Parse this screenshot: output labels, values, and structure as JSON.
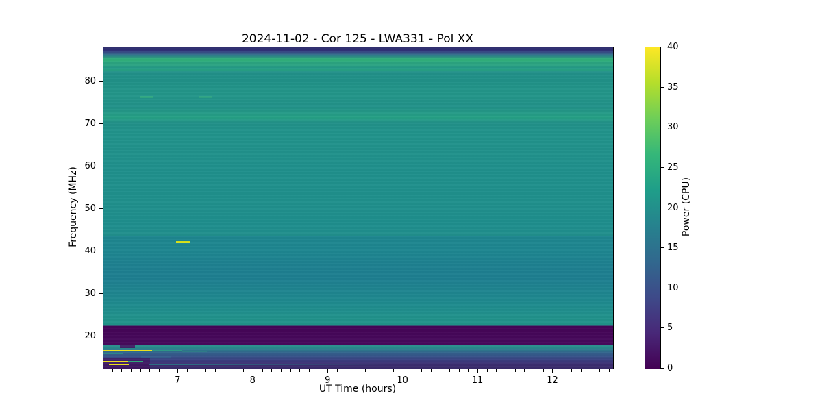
{
  "figure": {
    "title": "2024-11-02 - Cor 125 - LWA331 - Pol XX"
  },
  "chart_data": {
    "type": "heatmap",
    "subtype": "dynamic-spectrum",
    "title": "2024-11-02 - Cor 125 - LWA331 - Pol XX",
    "xlabel": "UT Time (hours)",
    "ylabel": "Frequency (MHz)",
    "x_range": [
      6.0,
      12.8
    ],
    "y_range": [
      12.5,
      88.0
    ],
    "x_ticks": [
      7,
      8,
      9,
      10,
      11,
      12
    ],
    "x_minor_tick_interval": 0.125,
    "y_ticks": [
      20,
      30,
      40,
      50,
      60,
      70,
      80
    ],
    "grid": false,
    "colorbar": {
      "label": "Power (CPU)",
      "range": [
        0,
        40
      ],
      "ticks": [
        0,
        5,
        10,
        15,
        20,
        25,
        30,
        35,
        40
      ],
      "colormap": "viridis",
      "stops": [
        "#440154",
        "#482878",
        "#3e4a89",
        "#31688e",
        "#26828e",
        "#1f9e89",
        "#35b779",
        "#6ece58",
        "#b5de2b",
        "#fde725"
      ]
    },
    "base_spectrum_gradient": [
      [
        88.0,
        "#2b2a6b"
      ],
      [
        87.3,
        "#303077"
      ],
      [
        86.6,
        "#395a8c"
      ],
      [
        86.0,
        "#2f808b"
      ],
      [
        85.4,
        "#2fa87d"
      ],
      [
        85.0,
        "#33b47a"
      ],
      [
        84.5,
        "#2ba580"
      ],
      [
        83.8,
        "#2ba381"
      ],
      [
        83.2,
        "#249a87"
      ],
      [
        82.7,
        "#28a384"
      ],
      [
        82.2,
        "#229089"
      ],
      [
        80.0,
        "#219188"
      ],
      [
        77.0,
        "#239689"
      ],
      [
        74.0,
        "#229189"
      ],
      [
        71.5,
        "#26a185"
      ],
      [
        70.2,
        "#229089"
      ],
      [
        68.0,
        "#21938b"
      ],
      [
        60.0,
        "#20908c"
      ],
      [
        52.0,
        "#20908c"
      ],
      [
        46.0,
        "#1f8e8d"
      ],
      [
        43.8,
        "#218f8c"
      ],
      [
        43.6,
        "#1e868f"
      ],
      [
        40.0,
        "#1e8690"
      ],
      [
        36.5,
        "#1e8090"
      ],
      [
        33.5,
        "#1e7f90"
      ],
      [
        30.5,
        "#1f858f"
      ],
      [
        27.5,
        "#1f8b8e"
      ],
      [
        25.0,
        "#21918c"
      ],
      [
        23.2,
        "#219389"
      ],
      [
        22.6,
        "#21948a"
      ],
      [
        22.55,
        "#450457"
      ],
      [
        18.1,
        "#470b5c"
      ],
      [
        18.05,
        "#27918b"
      ],
      [
        17.3,
        "#2a8a8d"
      ],
      [
        17.0,
        "#2d7e8e"
      ],
      [
        16.2,
        "#33638d"
      ],
      [
        15.3,
        "#375189"
      ],
      [
        14.4,
        "#3b3d80"
      ],
      [
        13.6,
        "#3c2f72"
      ],
      [
        12.5,
        "#3a2b6b"
      ]
    ],
    "features": [
      {
        "name": "dark-band-bottom-left",
        "t0": 6.0,
        "t1": 6.62,
        "f0": 12.5,
        "f1": 15.0,
        "color": "#440a57",
        "opacity": 0.55
      },
      {
        "name": "teal-dash-16mhz",
        "t0": 6.0,
        "t1": 6.26,
        "f0": 15.9,
        "f1": 16.25,
        "color": "#2e8e8d",
        "opacity": 0.9
      },
      {
        "name": "blue-dash-15mhz",
        "t0": 6.5,
        "t1": 6.9,
        "f0": 15.1,
        "f1": 15.45,
        "color": "#35608d",
        "opacity": 0.8
      },
      {
        "name": "gap-dark-17.6mhz",
        "t0": 6.22,
        "t1": 6.42,
        "f0": 17.3,
        "f1": 17.95,
        "color": "#451060",
        "opacity": 0.85
      },
      {
        "name": "teal-ext-16.6mhz",
        "t0": 6.65,
        "t1": 7.05,
        "f0": 16.45,
        "f1": 16.78,
        "color": "#2f9e87",
        "opacity": 0.9
      },
      {
        "name": "teal-faint-16.6mhz",
        "t0": 7.05,
        "t1": 7.38,
        "f0": 16.45,
        "f1": 16.72,
        "color": "#2f9e87",
        "opacity": 0.38
      },
      {
        "name": "teal-line-13.4mhz",
        "t0": 6.6,
        "t1": 9.8,
        "f0": 13.25,
        "f1": 13.55,
        "color": "#2b808d",
        "opacity": 0.8,
        "fade": "right"
      },
      {
        "name": "rfi-yellow-16.6mhz",
        "t0": 6.0,
        "t1": 6.65,
        "f0": 16.45,
        "f1": 16.8,
        "color": "#f2e51e",
        "opacity": 1
      },
      {
        "name": "rfi-yellow-14.2mhz",
        "t0": 6.0,
        "t1": 6.33,
        "f0": 14.0,
        "f1": 14.35,
        "color": "#f2e51e",
        "opacity": 1
      },
      {
        "name": "green-ext-14.2mhz",
        "t0": 6.33,
        "t1": 6.53,
        "f0": 14.0,
        "f1": 14.35,
        "color": "#2fae7c",
        "opacity": 1
      },
      {
        "name": "rfi-yellow-13.5mhz",
        "t0": 6.07,
        "t1": 6.34,
        "f0": 13.3,
        "f1": 13.6,
        "color": "#f2e51e",
        "opacity": 1
      },
      {
        "name": "burst-dash-42mhz",
        "t0": 6.97,
        "t1": 7.16,
        "f0": 42.0,
        "f1": 42.45,
        "color": "#d8e219",
        "opacity": 1
      },
      {
        "name": "faint-dash-76mhz-a",
        "t0": 6.49,
        "t1": 6.66,
        "f0": 76.1,
        "f1": 76.55,
        "color": "#33ab81",
        "opacity": 0.85
      },
      {
        "name": "faint-dash-76mhz-b",
        "t0": 7.27,
        "t1": 7.45,
        "f0": 76.1,
        "f1": 76.55,
        "color": "#33ab81",
        "opacity": 0.7
      }
    ]
  }
}
